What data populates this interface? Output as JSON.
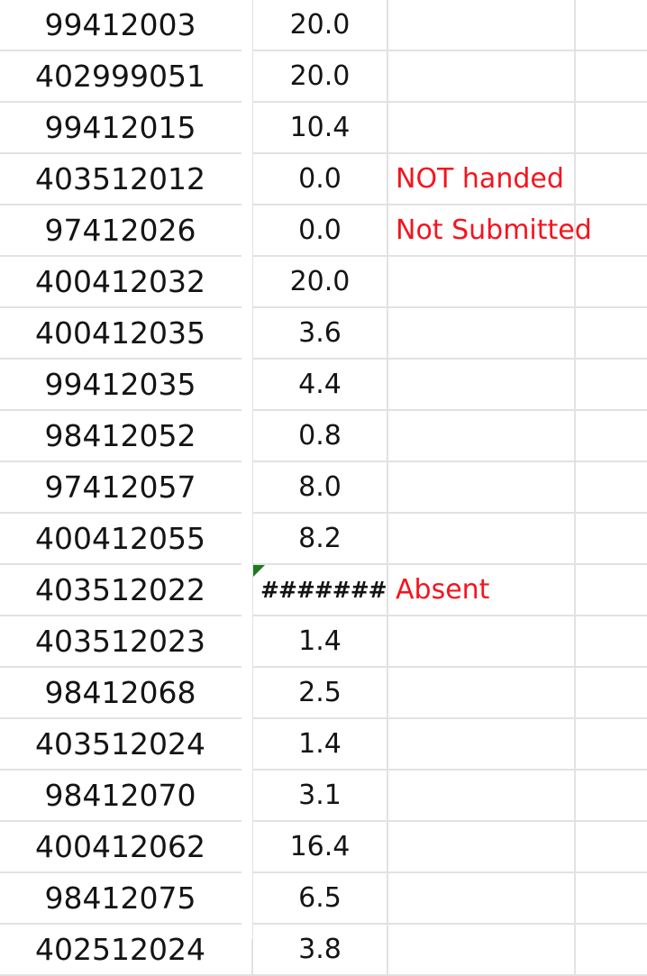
{
  "rows": [
    {
      "id": "99412003",
      "score": "20.0",
      "note": ""
    },
    {
      "id": "402999051",
      "score": "20.0",
      "note": ""
    },
    {
      "id": "99412015",
      "score": "10.4",
      "note": ""
    },
    {
      "id": "403512012",
      "score": "0.0",
      "note": "NOT handed"
    },
    {
      "id": "97412026",
      "score": "0.0",
      "note": "Not Submitted"
    },
    {
      "id": "400412032",
      "score": "20.0",
      "note": ""
    },
    {
      "id": "400412035",
      "score": "3.6",
      "note": ""
    },
    {
      "id": "99412035",
      "score": "4.4",
      "note": ""
    },
    {
      "id": "98412052",
      "score": "0.8",
      "note": ""
    },
    {
      "id": "97412057",
      "score": "8.0",
      "note": ""
    },
    {
      "id": "400412055",
      "score": "8.2",
      "note": ""
    },
    {
      "id": "403512022",
      "score": "#######",
      "note": "Absent"
    },
    {
      "id": "403512023",
      "score": "1.4",
      "note": ""
    },
    {
      "id": "98412068",
      "score": "2.5",
      "note": ""
    },
    {
      "id": "403512024",
      "score": "1.4",
      "note": ""
    },
    {
      "id": "98412070",
      "score": "3.1",
      "note": ""
    },
    {
      "id": "400412062",
      "score": "16.4",
      "note": ""
    },
    {
      "id": "98412075",
      "score": "6.5",
      "note": ""
    },
    {
      "id": "402512024",
      "score": "3.8",
      "note": ""
    }
  ],
  "colors": {
    "note_text": "#f5141e",
    "gridline": "#e2e2e2",
    "comment_marker": "#1f7a1f"
  },
  "icons": {
    "comment_indicator": "comment-marker-icon"
  }
}
